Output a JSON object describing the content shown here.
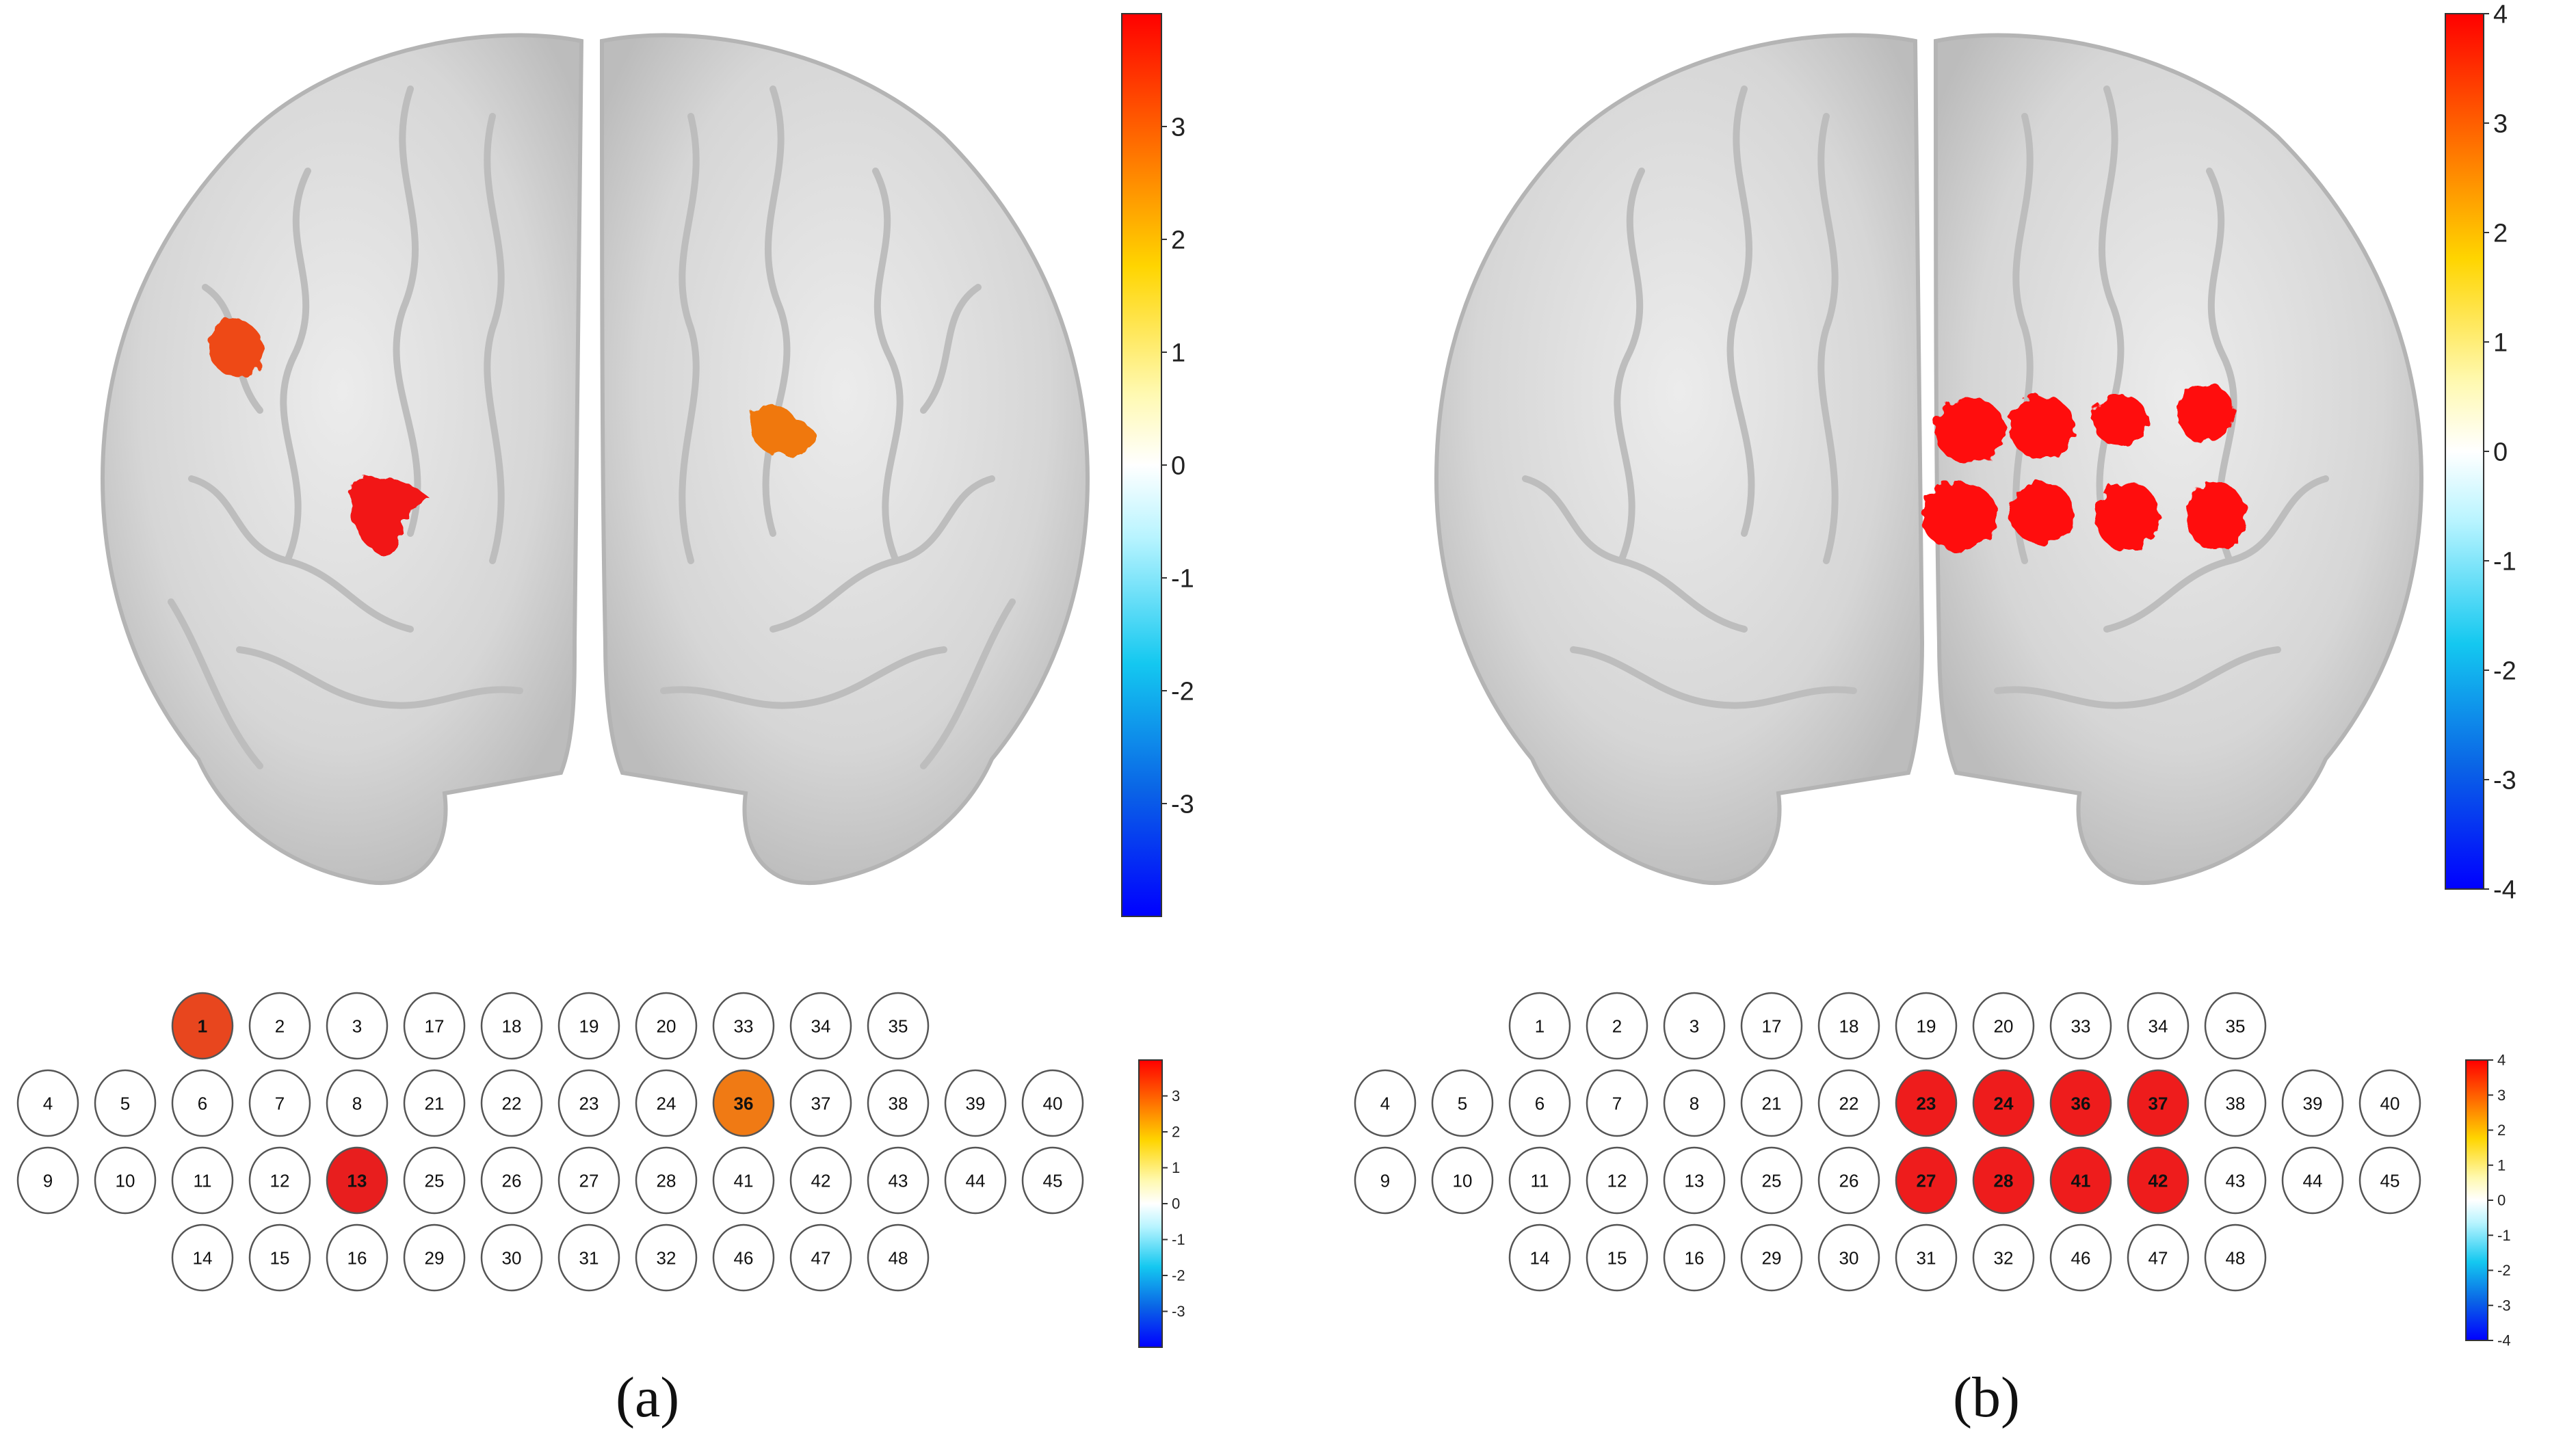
{
  "panels": [
    {
      "id": "a",
      "label": "(a)",
      "brain_colorbar": {
        "ticks": [
          3,
          2,
          1,
          0,
          -1,
          -2,
          -3
        ],
        "range": [
          -4,
          4
        ]
      },
      "grid_colorbar": {
        "ticks": [
          3,
          2,
          1,
          0,
          -1,
          -2,
          -3
        ],
        "range": [
          -4,
          4
        ]
      },
      "channel_rows": [
        [
          1,
          2,
          3,
          17,
          18,
          19,
          20,
          33,
          34,
          35
        ],
        [
          4,
          5,
          6,
          7,
          8,
          21,
          22,
          23,
          24,
          36,
          37,
          38,
          39,
          40
        ],
        [
          9,
          10,
          11,
          12,
          13,
          25,
          26,
          27,
          28,
          41,
          42,
          43,
          44,
          45
        ],
        [
          14,
          15,
          16,
          29,
          30,
          31,
          32,
          46,
          47,
          48
        ]
      ],
      "activated_channels": [
        {
          "channel": 1,
          "color": "#e8461e"
        },
        {
          "channel": 13,
          "color": "#e81e1e"
        },
        {
          "channel": 36,
          "color": "#f07a14"
        }
      ]
    },
    {
      "id": "b",
      "label": "(b)",
      "brain_colorbar": {
        "ticks": [
          4,
          3,
          2,
          1,
          0,
          -1,
          -2,
          -3,
          -4
        ],
        "range": [
          -4,
          4
        ]
      },
      "grid_colorbar": {
        "ticks": [
          4,
          3,
          2,
          1,
          0,
          -1,
          -2,
          -3,
          -4
        ],
        "range": [
          -4,
          4
        ]
      },
      "channel_rows": [
        [
          1,
          2,
          3,
          17,
          18,
          19,
          20,
          33,
          34,
          35
        ],
        [
          4,
          5,
          6,
          7,
          8,
          21,
          22,
          23,
          24,
          36,
          37,
          38,
          39,
          40
        ],
        [
          9,
          10,
          11,
          12,
          13,
          25,
          26,
          27,
          28,
          41,
          42,
          43,
          44,
          45
        ],
        [
          14,
          15,
          16,
          29,
          30,
          31,
          32,
          46,
          47,
          48
        ]
      ],
      "activated_channels": [
        {
          "channel": 23,
          "color": "#ee1c1c"
        },
        {
          "channel": 24,
          "color": "#ee1c1c"
        },
        {
          "channel": 36,
          "color": "#ee1c1c"
        },
        {
          "channel": 37,
          "color": "#ee1c1c"
        },
        {
          "channel": 27,
          "color": "#ee1c1c"
        },
        {
          "channel": 28,
          "color": "#ee1c1c"
        },
        {
          "channel": 41,
          "color": "#ee1c1c"
        },
        {
          "channel": 42,
          "color": "#ee1c1c"
        }
      ]
    }
  ],
  "colors": {
    "brain_fill": "#dcdcdc",
    "brain_stroke": "#b8b8b8",
    "channel_stroke": "#555555",
    "panel_a_spot_red": "#f21414",
    "panel_a_spot_orange": "#f0780f",
    "panel_b_spot_red": "#ff1010"
  }
}
